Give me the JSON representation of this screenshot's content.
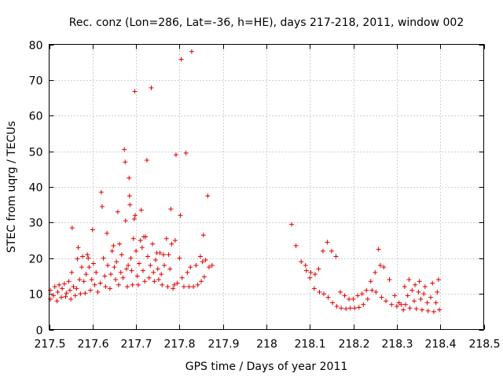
{
  "chart_data": {
    "type": "scatter",
    "title": "Rec. conz (Lon=286, Lat=-36, h=HE), days 217-218, 2011, window 002",
    "xlabel": "GPS time / Days of year 2011",
    "ylabel": "STEC from uqrg / TECUs",
    "xlim": [
      217.5,
      218.5
    ],
    "ylim": [
      0,
      80
    ],
    "xticks": [
      217.5,
      217.6,
      217.7,
      217.8,
      217.9,
      218.0,
      218.1,
      218.2,
      218.3,
      218.4,
      218.5
    ],
    "xtick_labels": [
      "217.5",
      "217.6",
      "217.7",
      "217.8",
      "217.9",
      "218",
      "218.1",
      "218.2",
      "218.3",
      "218.4",
      "218.5"
    ],
    "yticks": [
      0,
      10,
      20,
      30,
      40,
      50,
      60,
      70,
      80
    ],
    "ytick_labels": [
      "0",
      "10",
      "20",
      "30",
      "40",
      "50",
      "60",
      "70",
      "80"
    ],
    "grid": true,
    "marker": "+",
    "color": "#e00000",
    "series": [
      {
        "name": "STEC",
        "points": [
          [
            217.503,
            8.5
          ],
          [
            217.503,
            11.0
          ],
          [
            217.51,
            9.5
          ],
          [
            217.513,
            12.0
          ],
          [
            217.518,
            8.0
          ],
          [
            217.52,
            10.5
          ],
          [
            217.523,
            12.5
          ],
          [
            217.528,
            9.0
          ],
          [
            217.53,
            11.5
          ],
          [
            217.535,
            12.8
          ],
          [
            217.538,
            9.2
          ],
          [
            217.54,
            10.2
          ],
          [
            217.545,
            13.5
          ],
          [
            217.548,
            11.0
          ],
          [
            217.55,
            8.5
          ],
          [
            217.552,
            16.0
          ],
          [
            217.553,
            28.5
          ],
          [
            217.556,
            12.0
          ],
          [
            217.56,
            9.5
          ],
          [
            217.563,
            11.5
          ],
          [
            217.565,
            19.8
          ],
          [
            217.567,
            23.0
          ],
          [
            217.57,
            14.0
          ],
          [
            217.572,
            10.0
          ],
          [
            217.575,
            17.5
          ],
          [
            217.577,
            20.5
          ],
          [
            217.58,
            13.5
          ],
          [
            217.583,
            10.2
          ],
          [
            217.585,
            15.5
          ],
          [
            217.588,
            21.0
          ],
          [
            217.59,
            20.0
          ],
          [
            217.592,
            17.5
          ],
          [
            217.595,
            11.0
          ],
          [
            217.598,
            14.0
          ],
          [
            217.6,
            28.0
          ],
          [
            217.602,
            18.5
          ],
          [
            217.605,
            12.5
          ],
          [
            217.608,
            16.0
          ],
          [
            217.612,
            10.5
          ],
          [
            217.618,
            13.0
          ],
          [
            217.62,
            38.5
          ],
          [
            217.622,
            34.5
          ],
          [
            217.625,
            20.0
          ],
          [
            217.628,
            15.0
          ],
          [
            217.63,
            12.0
          ],
          [
            217.633,
            27.0
          ],
          [
            217.635,
            18.0
          ],
          [
            217.64,
            11.5
          ],
          [
            217.642,
            15.5
          ],
          [
            217.645,
            22.0
          ],
          [
            217.648,
            23.5
          ],
          [
            217.65,
            17.5
          ],
          [
            217.653,
            14.0
          ],
          [
            217.655,
            19.0
          ],
          [
            217.658,
            33.0
          ],
          [
            217.66,
            12.5
          ],
          [
            217.662,
            24.0
          ],
          [
            217.665,
            16.0
          ],
          [
            217.667,
            21.0
          ],
          [
            217.67,
            14.5
          ],
          [
            217.673,
            50.5
          ],
          [
            217.675,
            47.0
          ],
          [
            217.676,
            30.5
          ],
          [
            217.678,
            17.0
          ],
          [
            217.68,
            12.0
          ],
          [
            217.682,
            18.0
          ],
          [
            217.684,
            42.5
          ],
          [
            217.685,
            37.5
          ],
          [
            217.686,
            35.0
          ],
          [
            217.688,
            20.0
          ],
          [
            217.69,
            16.5
          ],
          [
            217.692,
            12.5
          ],
          [
            217.694,
            25.5
          ],
          [
            217.696,
            31.0
          ],
          [
            217.697,
            66.8
          ],
          [
            217.698,
            32.0
          ],
          [
            217.7,
            22.0
          ],
          [
            217.703,
            15.0
          ],
          [
            217.705,
            12.5
          ],
          [
            217.707,
            18.5
          ],
          [
            217.71,
            25.0
          ],
          [
            217.712,
            33.5
          ],
          [
            217.714,
            23.0
          ],
          [
            217.716,
            16.5
          ],
          [
            217.718,
            26.0
          ],
          [
            217.72,
            13.5
          ],
          [
            217.722,
            26.0
          ],
          [
            217.725,
            47.5
          ],
          [
            217.727,
            20.5
          ],
          [
            217.73,
            14.5
          ],
          [
            217.733,
            18.0
          ],
          [
            217.735,
            67.8
          ],
          [
            217.738,
            24.0
          ],
          [
            217.74,
            16.0
          ],
          [
            217.742,
            13.5
          ],
          [
            217.745,
            19.5
          ],
          [
            217.748,
            21.5
          ],
          [
            217.75,
            17.0
          ],
          [
            217.752,
            14.0
          ],
          [
            217.755,
            21.5
          ],
          [
            217.758,
            15.5
          ],
          [
            217.76,
            12.5
          ],
          [
            217.763,
            21.0
          ],
          [
            217.765,
            18.0
          ],
          [
            217.77,
            25.5
          ],
          [
            217.773,
            12.0
          ],
          [
            217.775,
            21.0
          ],
          [
            217.778,
            17.0
          ],
          [
            217.78,
            33.8
          ],
          [
            217.782,
            24.0
          ],
          [
            217.785,
            11.5
          ],
          [
            217.788,
            12.5
          ],
          [
            217.79,
            25.0
          ],
          [
            217.792,
            49.0
          ],
          [
            217.795,
            13.0
          ],
          [
            217.8,
            20.0
          ],
          [
            217.802,
            32.0
          ],
          [
            217.804,
            75.8
          ],
          [
            217.806,
            14.5
          ],
          [
            217.81,
            12.0
          ],
          [
            217.815,
            49.5
          ],
          [
            217.818,
            16.0
          ],
          [
            217.822,
            12.0
          ],
          [
            217.825,
            17.5
          ],
          [
            217.828,
            78.0
          ],
          [
            217.832,
            12.0
          ],
          [
            217.838,
            18.0
          ],
          [
            217.842,
            12.5
          ],
          [
            217.848,
            20.5
          ],
          [
            217.85,
            13.5
          ],
          [
            217.853,
            19.0
          ],
          [
            217.855,
            26.5
          ],
          [
            217.857,
            14.8
          ],
          [
            217.86,
            19.5
          ],
          [
            217.865,
            37.5
          ],
          [
            217.868,
            17.5
          ],
          [
            217.875,
            18.0
          ],
          [
            218.058,
            29.5
          ],
          [
            218.068,
            23.5
          ],
          [
            218.08,
            19.0
          ],
          [
            218.09,
            18.0
          ],
          [
            218.092,
            16.5
          ],
          [
            218.1,
            14.5
          ],
          [
            218.102,
            16.0
          ],
          [
            218.11,
            11.5
          ],
          [
            218.112,
            15.5
          ],
          [
            218.12,
            17.0
          ],
          [
            218.122,
            10.5
          ],
          [
            218.13,
            22.0
          ],
          [
            218.132,
            10.0
          ],
          [
            218.14,
            24.5
          ],
          [
            218.142,
            9.0
          ],
          [
            218.15,
            22.0
          ],
          [
            218.152,
            7.5
          ],
          [
            218.16,
            20.5
          ],
          [
            218.162,
            6.5
          ],
          [
            218.17,
            10.5
          ],
          [
            218.172,
            6.0
          ],
          [
            218.18,
            9.5
          ],
          [
            218.183,
            5.8
          ],
          [
            218.19,
            8.5
          ],
          [
            218.193,
            6.0
          ],
          [
            218.2,
            8.5
          ],
          [
            218.203,
            6.0
          ],
          [
            218.21,
            9.5
          ],
          [
            218.213,
            6.2
          ],
          [
            218.22,
            10.0
          ],
          [
            218.223,
            7.0
          ],
          [
            218.23,
            11.0
          ],
          [
            218.233,
            8.5
          ],
          [
            218.24,
            13.5
          ],
          [
            218.243,
            11.0
          ],
          [
            218.25,
            16.0
          ],
          [
            218.252,
            10.5
          ],
          [
            218.258,
            22.5
          ],
          [
            218.262,
            18.0
          ],
          [
            218.265,
            9.0
          ],
          [
            218.27,
            17.5
          ],
          [
            218.275,
            8.0
          ],
          [
            218.283,
            14.0
          ],
          [
            218.288,
            7.0
          ],
          [
            218.295,
            9.5
          ],
          [
            218.3,
            6.5
          ],
          [
            218.305,
            7.5
          ],
          [
            218.31,
            7.0
          ],
          [
            218.315,
            5.5
          ],
          [
            218.318,
            12.0
          ],
          [
            218.32,
            7.0
          ],
          [
            218.325,
            9.5
          ],
          [
            218.328,
            14.0
          ],
          [
            218.33,
            6.0
          ],
          [
            218.335,
            11.0
          ],
          [
            218.34,
            8.0
          ],
          [
            218.342,
            12.5
          ],
          [
            218.345,
            5.8
          ],
          [
            218.35,
            10.5
          ],
          [
            218.352,
            13.5
          ],
          [
            218.355,
            8.5
          ],
          [
            218.358,
            5.5
          ],
          [
            218.362,
            10.0
          ],
          [
            218.365,
            12.0
          ],
          [
            218.37,
            7.5
          ],
          [
            218.372,
            5.2
          ],
          [
            218.378,
            9.0
          ],
          [
            218.382,
            13.0
          ],
          [
            218.385,
            5.0
          ],
          [
            218.39,
            7.5
          ],
          [
            218.393,
            10.5
          ],
          [
            218.396,
            14.0
          ],
          [
            218.398,
            5.5
          ]
        ]
      }
    ]
  }
}
